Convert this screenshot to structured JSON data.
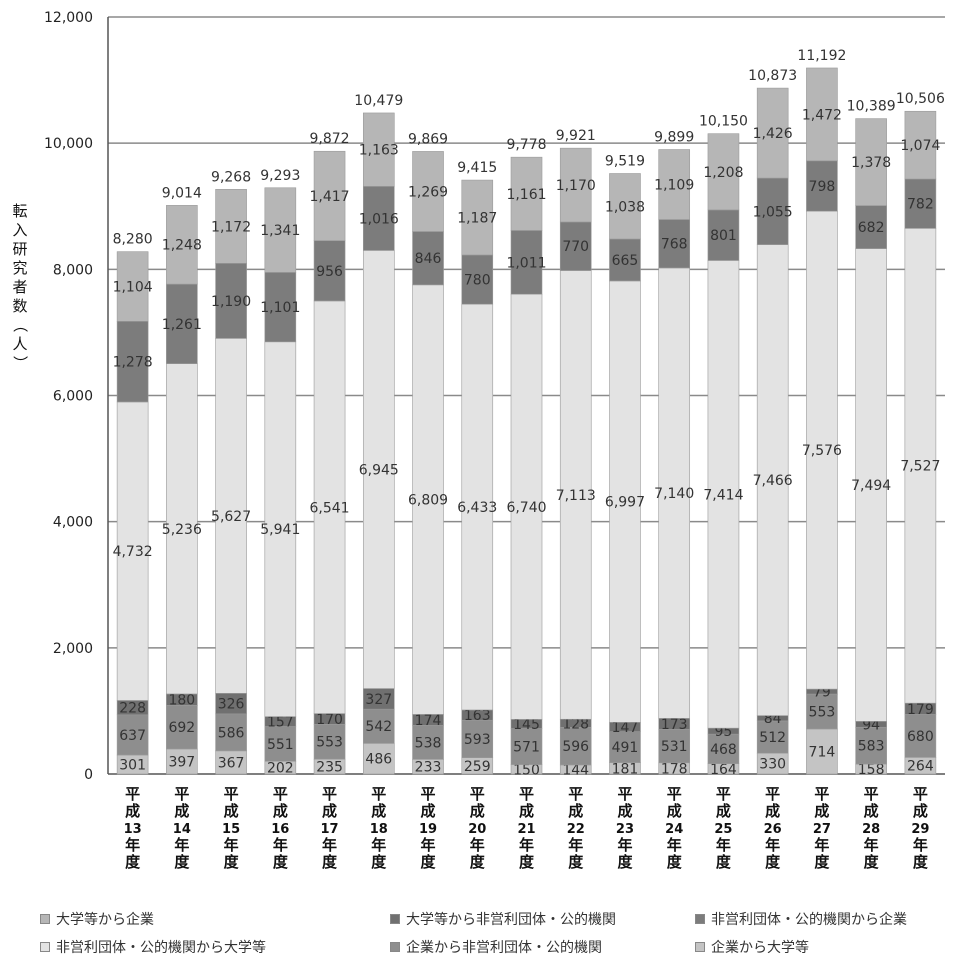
{
  "chart_data": {
    "type": "stacked-bar",
    "ylabel": "転入研究者数（人）",
    "ylim": [
      0,
      12000
    ],
    "yticks": [
      "0",
      "2,000",
      "4,000",
      "6,000",
      "8,000",
      "10,000",
      "12,000"
    ],
    "grid": true,
    "legend_position": "bottom",
    "categories": [
      "平成13年度",
      "平成14年度",
      "平成15年度",
      "平成16年度",
      "平成17年度",
      "平成18年度",
      "平成19年度",
      "平成20年度",
      "平成21年度",
      "平成22年度",
      "平成23年度",
      "平成24年度",
      "平成25年度",
      "平成26年度",
      "平成27年度",
      "平成28年度",
      "平成29年度"
    ],
    "series": [
      {
        "name": "企業から大学等",
        "color": "#c4c4c4",
        "values": [
          301,
          397,
          367,
          202,
          235,
          486,
          233,
          259,
          150,
          144,
          181,
          178,
          164,
          330,
          714,
          158,
          264
        ]
      },
      {
        "name": "企業から非営利団体・公的機関",
        "color": "#8e8e8e",
        "values": [
          637,
          692,
          586,
          551,
          553,
          542,
          538,
          593,
          571,
          596,
          491,
          531,
          468,
          512,
          553,
          583,
          680
        ]
      },
      {
        "name": "大学等から非営利団体・公的機関",
        "color": "#707070",
        "values": [
          228,
          180,
          326,
          157,
          170,
          327,
          174,
          163,
          145,
          128,
          147,
          173,
          95,
          84,
          79,
          94,
          179
        ]
      },
      {
        "name": "非営利団体・公的機関から大学等",
        "color": "#e3e3e3",
        "values": [
          4732,
          5236,
          5627,
          5941,
          6541,
          6945,
          6809,
          6433,
          6740,
          7113,
          6997,
          7140,
          7414,
          7466,
          7576,
          7494,
          7527
        ]
      },
      {
        "name": "非営利団体・公的機関から企業",
        "color": "#7c7c7c",
        "values": [
          1278,
          1261,
          1190,
          1101,
          956,
          1016,
          846,
          780,
          1011,
          770,
          665,
          768,
          801,
          1055,
          798,
          682,
          782
        ]
      },
      {
        "name": "大学等から企業",
        "color": "#b6b6b6",
        "values": [
          1104,
          1248,
          1172,
          1341,
          1417,
          1163,
          1269,
          1187,
          1161,
          1170,
          1038,
          1109,
          1208,
          1426,
          1472,
          1378,
          1074
        ]
      }
    ],
    "value_labels": [
      [
        "301",
        "397",
        "367",
        "202",
        "235",
        "486",
        "233",
        "259",
        "150",
        "144",
        "181",
        "178",
        "164",
        "330",
        "714",
        "158",
        "264"
      ],
      [
        "637",
        "692",
        "586",
        "551",
        "553",
        "542",
        "538",
        "593",
        "571",
        "596",
        "491",
        "531",
        "468",
        "512",
        "553",
        "583",
        "680"
      ],
      [
        "228",
        "180",
        "326",
        "157",
        "170",
        "327",
        "174",
        "163",
        "145",
        "128",
        "147",
        "173",
        "95",
        "84",
        "79",
        "94",
        "179"
      ],
      [
        "4,732",
        "5,236",
        "5,627",
        "5,941",
        "6,541",
        "6,945",
        "6,809",
        "6,433",
        "6,740",
        "7,113",
        "6,997",
        "7,140",
        "7,414",
        "7,466",
        "7,576",
        "7,494",
        "7,527"
      ],
      [
        "1,278",
        "1,261",
        "1,190",
        "1,101",
        "956",
        "1,016",
        "846",
        "780",
        "1,011",
        "770",
        "665",
        "768",
        "801",
        "1,055",
        "798",
        "682",
        "782"
      ],
      [
        "1,104",
        "1,248",
        "1,172",
        "1,341",
        "1,417",
        "1,163",
        "1,269",
        "1,187",
        "1,161",
        "1,170",
        "1,038",
        "1,109",
        "1,208",
        "1,426",
        "1,472",
        "1,378",
        "1,074"
      ]
    ],
    "totals": [
      8280,
      9014,
      9268,
      9293,
      9872,
      10479,
      9869,
      9415,
      9778,
      9921,
      9519,
      9899,
      10150,
      10873,
      11192,
      10389,
      10506
    ],
    "total_labels": [
      "8,280",
      "9,014",
      "9,268",
      "9,293",
      "9,872",
      "10,479",
      "9,869",
      "9,415",
      "9,778",
      "9,921",
      "9,519",
      "9,899",
      "10,150",
      "10,873",
      "11,192",
      "10,389",
      "10,506"
    ]
  },
  "legend": {
    "rows": [
      [
        {
          "label": "大学等から企業",
          "color": "#b6b6b6"
        },
        {
          "label": "大学等から非営利団体・公的機関",
          "color": "#707070"
        },
        {
          "label": "非営利団体・公的機関から企業",
          "color": "#7c7c7c"
        }
      ],
      [
        {
          "label": "非営利団体・公的機関から大学等",
          "color": "#e3e3e3"
        },
        {
          "label": "企業から非営利団体・公的機関",
          "color": "#8e8e8e"
        },
        {
          "label": "企業から大学等",
          "color": "#c4c4c4"
        }
      ]
    ]
  }
}
